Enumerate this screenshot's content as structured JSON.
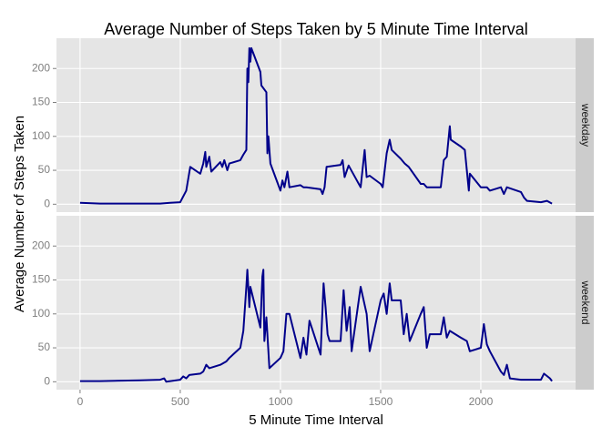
{
  "chart_data": {
    "type": "line",
    "title": "Average Number of Steps Taken by 5 Minute Time Interval",
    "x_label": "5 Minute Time Interval",
    "y_label": "Average Number of Steps Taken",
    "xlim": [
      -117.75,
      2472.75
    ],
    "ylim": [
      -11.65,
      244.6
    ],
    "xticks": [
      0,
      500,
      1000,
      1500,
      2000
    ],
    "yticks": [
      0,
      50,
      100,
      150,
      200
    ],
    "grid": true,
    "color": "#00008b",
    "facets": [
      {
        "name": "weekday",
        "x": [
          0,
          100,
          200,
          300,
          400,
          450,
          500,
          530,
          550,
          600,
          615,
          625,
          630,
          645,
          655,
          700,
          710,
          720,
          735,
          745,
          800,
          815,
          830,
          835,
          840,
          845,
          850,
          855,
          900,
          905,
          930,
          935,
          940,
          950,
          1000,
          1010,
          1020,
          1035,
          1045,
          1100,
          1115,
          1130,
          1200,
          1210,
          1220,
          1230,
          1300,
          1310,
          1320,
          1340,
          1400,
          1420,
          1430,
          1445,
          1500,
          1510,
          1530,
          1545,
          1555,
          1600,
          1620,
          1640,
          1700,
          1715,
          1730,
          1800,
          1815,
          1830,
          1845,
          1850,
          1900,
          1920,
          1930,
          1940,
          1945,
          2000,
          2030,
          2045,
          2100,
          2115,
          2130,
          2200,
          2215,
          2230,
          2300,
          2330,
          2355
        ],
        "values": [
          2,
          1,
          1,
          1,
          1,
          2,
          3,
          20,
          55,
          45,
          60,
          77,
          55,
          70,
          48,
          62,
          55,
          65,
          50,
          60,
          65,
          73,
          80,
          200,
          180,
          230,
          210,
          230,
          195,
          175,
          165,
          75,
          100,
          60,
          20,
          35,
          25,
          48,
          25,
          28,
          25,
          25,
          22,
          15,
          25,
          55,
          58,
          65,
          40,
          57,
          25,
          80,
          40,
          42,
          30,
          25,
          75,
          95,
          80,
          67,
          60,
          55,
          30,
          30,
          25,
          25,
          65,
          70,
          115,
          95,
          85,
          80,
          50,
          20,
          45,
          25,
          25,
          20,
          25,
          15,
          25,
          18,
          10,
          5,
          3,
          5,
          1
        ]
      },
      {
        "name": "weekend",
        "x": [
          0,
          100,
          300,
          400,
          420,
          430,
          500,
          515,
          530,
          545,
          600,
          615,
          630,
          645,
          700,
          730,
          745,
          800,
          815,
          830,
          835,
          845,
          850,
          900,
          910,
          915,
          920,
          930,
          945,
          1000,
          1015,
          1030,
          1045,
          1100,
          1115,
          1130,
          1145,
          1200,
          1215,
          1225,
          1235,
          1245,
          1300,
          1315,
          1330,
          1345,
          1355,
          1400,
          1430,
          1445,
          1500,
          1515,
          1530,
          1545,
          1555,
          1600,
          1615,
          1630,
          1645,
          1700,
          1715,
          1730,
          1745,
          1800,
          1815,
          1830,
          1845,
          1900,
          1930,
          1945,
          2000,
          2015,
          2030,
          2045,
          2100,
          2115,
          2130,
          2145,
          2200,
          2300,
          2315,
          2345,
          2355
        ],
        "values": [
          1,
          1,
          2,
          3,
          5,
          0,
          3,
          8,
          5,
          10,
          12,
          15,
          25,
          20,
          25,
          30,
          35,
          50,
          75,
          140,
          165,
          110,
          140,
          80,
          155,
          165,
          60,
          95,
          20,
          35,
          45,
          100,
          100,
          35,
          65,
          40,
          90,
          40,
          145,
          110,
          70,
          60,
          60,
          135,
          75,
          110,
          45,
          140,
          100,
          45,
          120,
          130,
          100,
          145,
          120,
          120,
          70,
          100,
          60,
          100,
          110,
          50,
          70,
          70,
          95,
          65,
          75,
          65,
          60,
          45,
          50,
          85,
          55,
          45,
          15,
          10,
          25,
          5,
          3,
          3,
          12,
          5,
          1
        ]
      }
    ]
  }
}
